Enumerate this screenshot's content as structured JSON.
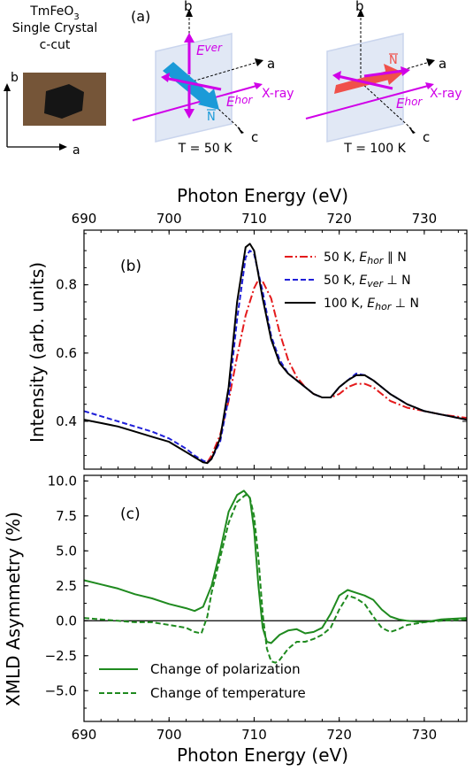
{
  "header": {
    "sample": [
      "TmFeO",
      "Single Crystal",
      "c-cut"
    ],
    "sample_sub": "3",
    "panel_a": "(a)",
    "axis_a": "a",
    "axis_b": "b",
    "axis_c": "c",
    "xray": "X-ray",
    "e_ver": "E",
    "e_ver_sub": "ver",
    "e_hor": "E",
    "e_hor_sub": "hor",
    "n_label": "N",
    "t_left": "T = 50 K",
    "t_right": "T = 100 K"
  },
  "colors": {
    "magenta": "#d000e8",
    "cyan": "#1a9ad8",
    "red_arrow": "#f0504a",
    "plane": "#c9d6ee",
    "green": "#1f8a1f",
    "red": "#e41a1c",
    "blue": "#1f1fd8",
    "black": "#000000"
  },
  "chart_data": [
    {
      "type": "line",
      "panel": "(b)",
      "xlabel_top": "Photon Energy (eV)",
      "ylabel": "Intensity (arb. units)",
      "xlim": [
        690,
        735
      ],
      "ylim": [
        0.26,
        0.96
      ],
      "xticks": [
        690,
        700,
        710,
        720,
        730
      ],
      "yticks": [
        0.4,
        0.6,
        0.8
      ],
      "ytick_labels": [
        "0.4",
        "0.6",
        "0.8"
      ],
      "series": [
        {
          "name": "50 K, E_hor ∥ N",
          "legend": [
            "50 K, ",
            "E",
            "hor",
            " ∥ N"
          ],
          "color": "#e41a1c",
          "dash": "9,3,2,3",
          "x": [
            704.5,
            705,
            706,
            707,
            708,
            709,
            710,
            710.5,
            711,
            712,
            713,
            714,
            715,
            716,
            717,
            718,
            719,
            720,
            721,
            722,
            723,
            724,
            725,
            726,
            728,
            730,
            732,
            735
          ],
          "y": [
            0.28,
            0.3,
            0.36,
            0.46,
            0.59,
            0.71,
            0.79,
            0.815,
            0.81,
            0.76,
            0.66,
            0.58,
            0.53,
            0.5,
            0.48,
            0.47,
            0.47,
            0.48,
            0.5,
            0.51,
            0.51,
            0.5,
            0.48,
            0.46,
            0.44,
            0.43,
            0.42,
            0.41
          ]
        },
        {
          "name": "50 K, E_ver ⊥ N",
          "legend": [
            "50 K, ",
            "E",
            "ver",
            " ⊥ N"
          ],
          "color": "#1f1fd8",
          "dash": "6,3",
          "x": [
            690,
            692,
            694,
            696,
            698,
            700,
            702,
            703,
            704,
            704.5,
            705,
            706,
            707,
            708,
            709,
            709.5,
            710,
            711,
            712,
            713,
            714,
            715,
            716,
            717,
            718,
            719,
            720,
            721,
            722,
            723,
            724,
            725,
            726,
            728,
            730,
            732,
            735
          ],
          "y": [
            0.43,
            0.415,
            0.4,
            0.385,
            0.37,
            0.35,
            0.32,
            0.3,
            0.285,
            0.28,
            0.29,
            0.34,
            0.47,
            0.7,
            0.88,
            0.9,
            0.89,
            0.78,
            0.65,
            0.58,
            0.54,
            0.52,
            0.5,
            0.48,
            0.47,
            0.47,
            0.5,
            0.52,
            0.54,
            0.535,
            0.52,
            0.5,
            0.48,
            0.45,
            0.43,
            0.42,
            0.405
          ]
        },
        {
          "name": "100 K, E_hor ⊥ N",
          "legend": [
            "100 K, ",
            "E",
            "hor",
            " ⊥ N"
          ],
          "color": "#000000",
          "dash": "",
          "x": [
            690,
            692,
            694,
            696,
            698,
            700,
            702,
            703,
            704,
            704.5,
            705,
            706,
            707,
            708,
            709,
            709.5,
            710,
            711,
            712,
            713,
            714,
            715,
            716,
            717,
            718,
            719,
            720,
            721,
            722,
            723,
            724,
            725,
            726,
            728,
            730,
            732,
            735
          ],
          "y": [
            0.405,
            0.395,
            0.385,
            0.37,
            0.355,
            0.34,
            0.31,
            0.295,
            0.28,
            0.278,
            0.29,
            0.35,
            0.5,
            0.75,
            0.91,
            0.92,
            0.9,
            0.76,
            0.64,
            0.57,
            0.54,
            0.52,
            0.5,
            0.48,
            0.47,
            0.47,
            0.5,
            0.52,
            0.535,
            0.535,
            0.52,
            0.5,
            0.48,
            0.45,
            0.43,
            0.42,
            0.405
          ]
        }
      ]
    },
    {
      "type": "line",
      "panel": "(c)",
      "xlabel": "Photon Energy (eV)",
      "ylabel": "XMLD Asymmetry (%)",
      "xlim": [
        690,
        735
      ],
      "ylim": [
        -7.2,
        10.4
      ],
      "xticks": [
        690,
        700,
        710,
        720,
        730
      ],
      "yticks": [
        -5,
        -2.5,
        0,
        2.5,
        5,
        7.5,
        10
      ],
      "ytick_labels": [
        "−5.0",
        "−2.5",
        "0.0",
        "2.5",
        "5.0",
        "7.5",
        "10.0"
      ],
      "hline": 0,
      "series": [
        {
          "name": "Change of polarization",
          "color": "#1f8a1f",
          "dash": "",
          "x": [
            690,
            692,
            694,
            696,
            698,
            700,
            702,
            703,
            704,
            705,
            706,
            707,
            708,
            708.8,
            709.5,
            710,
            710.5,
            711,
            711.5,
            712,
            713,
            714,
            715,
            716,
            717,
            718,
            719,
            720,
            721,
            722,
            723,
            724,
            725,
            726,
            727,
            728,
            730,
            732,
            735
          ],
          "y": [
            2.9,
            2.6,
            2.3,
            1.9,
            1.6,
            1.2,
            0.9,
            0.7,
            1.0,
            2.5,
            5,
            7.8,
            9.0,
            9.3,
            8.8,
            6.5,
            2.5,
            -0.5,
            -1.5,
            -1.6,
            -1.0,
            -0.7,
            -0.6,
            -0.9,
            -0.8,
            -0.5,
            0.5,
            1.8,
            2.2,
            2.0,
            1.8,
            1.5,
            0.8,
            0.3,
            0.1,
            0.0,
            -0.1,
            0.1,
            0.2
          ]
        },
        {
          "name": "Change of temperature",
          "color": "#1f8a1f",
          "dash": "6,3",
          "x": [
            690,
            692,
            694,
            696,
            698,
            700,
            702,
            703,
            703.8,
            704.5,
            705,
            706,
            707,
            708,
            709,
            709.5,
            710,
            710.5,
            711,
            711.5,
            712,
            712.5,
            713,
            714,
            715,
            716,
            717,
            718,
            719,
            720,
            721,
            722,
            723,
            724,
            725,
            726,
            727,
            728,
            730,
            732,
            735
          ],
          "y": [
            0.2,
            0.1,
            0,
            -0.1,
            -0.1,
            -0.3,
            -0.5,
            -0.8,
            -0.9,
            0.3,
            2.0,
            4.5,
            7.0,
            8.5,
            9.0,
            8.8,
            7.5,
            4.5,
            0.5,
            -2.0,
            -2.9,
            -3.0,
            -2.8,
            -2.0,
            -1.5,
            -1.5,
            -1.3,
            -1.0,
            -0.5,
            0.8,
            1.8,
            1.6,
            1.2,
            0.3,
            -0.5,
            -0.8,
            -0.6,
            -0.3,
            -0.1,
            0.0,
            0.1
          ]
        }
      ]
    }
  ]
}
